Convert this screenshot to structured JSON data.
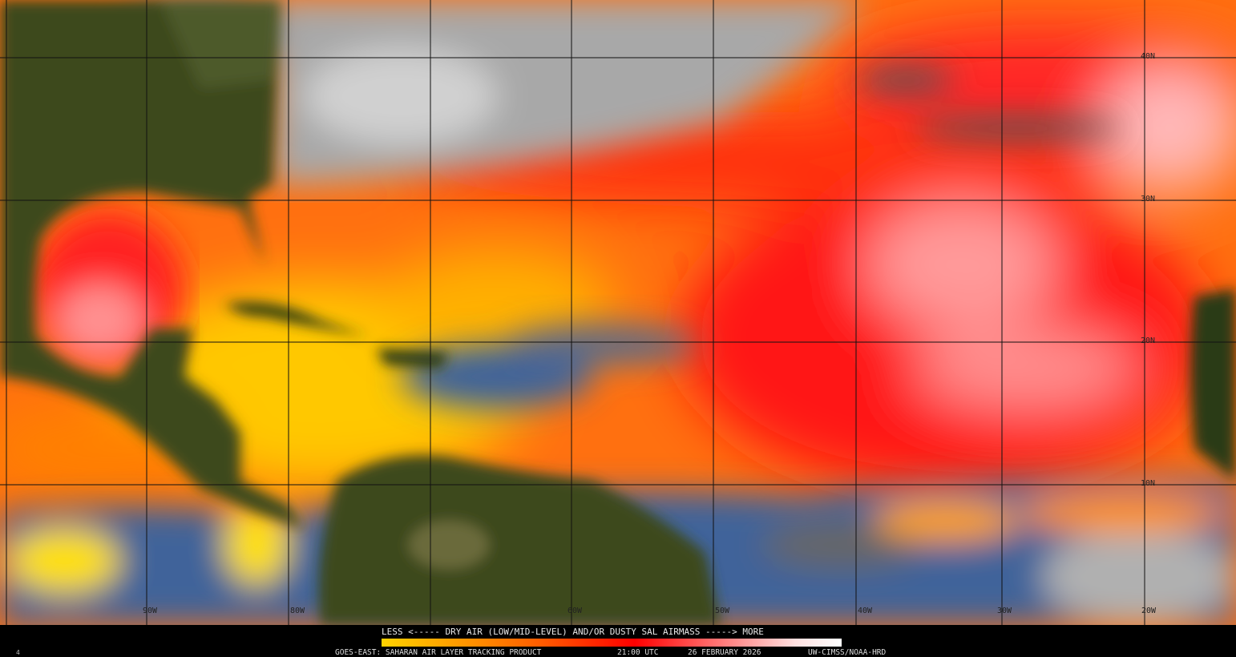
{
  "legend": {
    "title": "LESS <----- DRY AIR (LOW/MID-LEVEL) AND/OR DUSTY SAL AIRMASS -----> MORE",
    "colors": [
      "#ffd200",
      "#ffa000",
      "#ff5a00",
      "#ff0000",
      "#ff8080",
      "#ffffff"
    ]
  },
  "caption": {
    "product": "GOES-EAST: SAHARAN AIR LAYER TRACKING PRODUCT",
    "time": "21:00 UTC",
    "date": "26 FEBRUARY 2026",
    "credit": "UW-CIMSS/NOAA-HRD"
  },
  "corner_label": "4",
  "grid_labels": {
    "lon": [
      "90W",
      "80W",
      "60W",
      "50W",
      "40W",
      "30W",
      "20W"
    ],
    "lat": [
      "40N",
      "30N",
      "20N",
      "10N"
    ]
  },
  "palette": {
    "land": "#3c4a1c",
    "cloud": "#9c9c9c",
    "clear_moist": "#41649a",
    "background": "#000000"
  }
}
